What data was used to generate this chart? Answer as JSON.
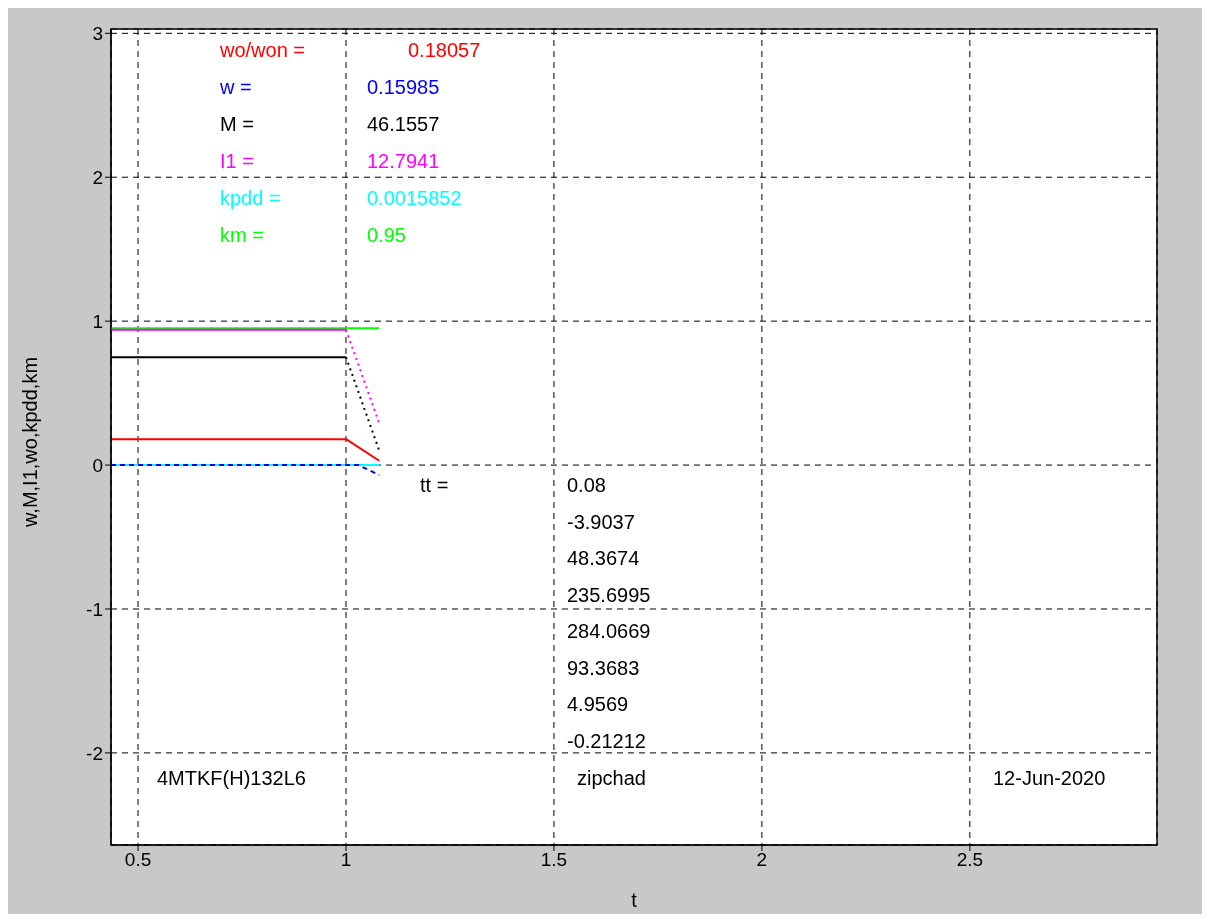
{
  "chart_data": {
    "type": "line",
    "xlabel": "t",
    "ylabel": "w,M,I1,wo,kpdd,km",
    "xlim": [
      0.435,
      2.95
    ],
    "ylim": [
      -2.64,
      3.03
    ],
    "xticks": [
      0.5,
      1,
      1.5,
      2,
      2.5
    ],
    "yticks": [
      -2,
      -1,
      0,
      1,
      2,
      3
    ],
    "grid": true,
    "legend": false,
    "marker": "none",
    "series": [
      {
        "color": "#ff0000",
        "x": [
          0.435,
          1,
          1.08
        ],
        "values": [
          0.18,
          0.18,
          0.03
        ],
        "line_style": "solid"
      },
      {
        "color": "#0000ff",
        "x": [
          0.435,
          1.03,
          1.08
        ],
        "values": [
          0,
          0,
          -0.07
        ],
        "line_style": "dashed"
      },
      {
        "color": "#000000",
        "x": [
          0.435,
          1
        ],
        "values": [
          0.75,
          0.75
        ],
        "line_style": "solid"
      },
      {
        "color": "#ff00ff",
        "x": [
          0.435,
          1
        ],
        "values": [
          0.94,
          0.94
        ],
        "line_style": "solid"
      },
      {
        "color": "#00ffff",
        "x": [
          0.435,
          1.08
        ],
        "values": [
          0,
          0
        ],
        "line_style": "solid"
      },
      {
        "color": "#00ff00",
        "x": [
          0.435,
          1.08
        ],
        "values": [
          0.95,
          0.95
        ],
        "line_style": "solid"
      },
      {
        "color": "#000000",
        "x": [
          1,
          1.08
        ],
        "values": [
          0.75,
          0.1
        ],
        "line_style": "dotted"
      },
      {
        "color": "#ff00ff",
        "x": [
          1,
          1.08
        ],
        "values": [
          0.94,
          0.29
        ],
        "line_style": "dotted"
      }
    ],
    "annotations": [
      "wo/won =",
      "0.18057",
      "w =",
      "0.15985",
      "M =",
      "46.1557",
      "I1 =",
      "12.7941",
      "kpdd =",
      "0.0015852",
      "km =",
      "0.95",
      "tt =",
      "0.08",
      "-3.9037",
      "48.3674",
      "235.6995",
      "284.0669",
      "93.3683",
      "4.9569",
      "-0.21212",
      "4MTKF(H)132L6",
      "zipchad",
      "12-Jun-2020"
    ]
  }
}
